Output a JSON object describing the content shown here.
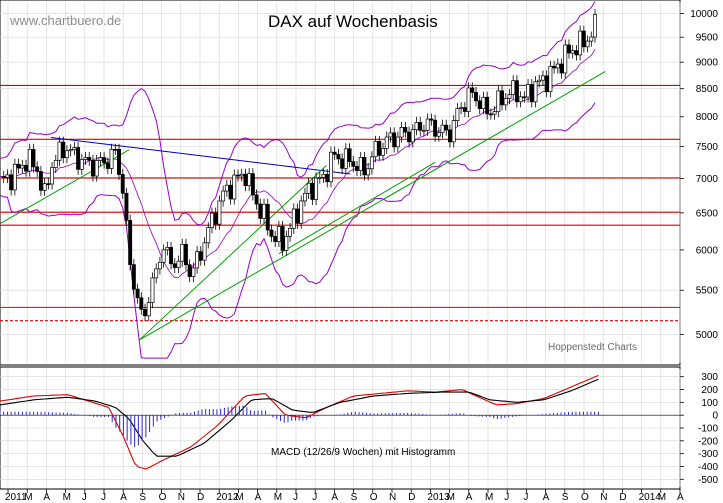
{
  "chart_data": {
    "type": "candlestick",
    "title": "DAX auf Wochenbasis",
    "watermark": "www.chartbuero.de",
    "credit": "Hoppenstedt Charts",
    "macd_label": "MACD (12/26/9 Wochen) mit Histogramm",
    "y_axis_price": {
      "ticks": [
        5000,
        5500,
        6000,
        6500,
        7000,
        7500,
        8000,
        8500,
        9000,
        9500,
        10000
      ],
      "scale": "log",
      "range": [
        4700,
        10250
      ]
    },
    "y_axis_macd": {
      "ticks": [
        300,
        200,
        100,
        0,
        -100,
        -200,
        -300,
        -400,
        -500
      ],
      "range": [
        -560,
        360
      ]
    },
    "x_labels": [
      "2011",
      "M",
      "A",
      "M",
      "J",
      "J",
      "A",
      "S",
      "O",
      "N",
      "D",
      "2012",
      "M",
      "A",
      "M",
      "J",
      "J",
      "A",
      "S",
      "O",
      "N",
      "D",
      "2013",
      "M",
      "A",
      "M",
      "J",
      "J",
      "A",
      "S",
      "O",
      "N",
      "D",
      "2014",
      "M",
      "A"
    ],
    "horizontal_levels": [
      {
        "value": 5150,
        "style": "dashed",
        "color": "#e00000"
      },
      {
        "value": 5300,
        "style": "solid",
        "color": "#e00000"
      },
      {
        "value": 6330,
        "style": "solid",
        "color": "#e00000"
      },
      {
        "value": 6510,
        "style": "solid",
        "color": "#e00000"
      },
      {
        "value": 7010,
        "style": "solid",
        "color": "#e00000"
      },
      {
        "value": 7620,
        "style": "solid",
        "color": "#e00000"
      },
      {
        "value": 8560,
        "style": "solid",
        "color": "#e00000"
      }
    ],
    "trendlines": [
      {
        "color": "#0000c0",
        "points": [
          [
            0.075,
            7650
          ],
          [
            0.515,
            7070
          ]
        ]
      },
      {
        "color": "#00a000",
        "points": [
          [
            0.0,
            6350
          ],
          [
            0.19,
            7450
          ]
        ]
      },
      {
        "color": "#00a000",
        "points": [
          [
            0.205,
            4940
          ],
          [
            0.48,
            7200
          ]
        ]
      },
      {
        "color": "#00a000",
        "points": [
          [
            0.205,
            4940
          ],
          [
            0.89,
            8820
          ]
        ]
      },
      {
        "color": "#00a000",
        "points": [
          [
            0.41,
            5950
          ],
          [
            0.64,
            7250
          ]
        ]
      }
    ],
    "price_path": [
      [
        0.0,
        6950
      ],
      [
        0.02,
        7050
      ],
      [
        0.04,
        7300
      ],
      [
        0.055,
        7150
      ],
      [
        0.065,
        6700
      ],
      [
        0.075,
        7200
      ],
      [
        0.095,
        7500
      ],
      [
        0.11,
        7350
      ],
      [
        0.125,
        7250
      ],
      [
        0.14,
        7200
      ],
      [
        0.16,
        7300
      ],
      [
        0.17,
        7400
      ],
      [
        0.18,
        6900
      ],
      [
        0.19,
        5850
      ],
      [
        0.2,
        5500
      ],
      [
        0.21,
        5100
      ],
      [
        0.22,
        5500
      ],
      [
        0.23,
        5700
      ],
      [
        0.24,
        6100
      ],
      [
        0.25,
        5800
      ],
      [
        0.27,
        5950
      ],
      [
        0.28,
        5700
      ],
      [
        0.29,
        5850
      ],
      [
        0.3,
        6100
      ],
      [
        0.31,
        6350
      ],
      [
        0.33,
        6800
      ],
      [
        0.35,
        7000
      ],
      [
        0.36,
        7100
      ],
      [
        0.37,
        6800
      ],
      [
        0.385,
        6500
      ],
      [
        0.4,
        6200
      ],
      [
        0.415,
        6100
      ],
      [
        0.43,
        6350
      ],
      [
        0.445,
        6700
      ],
      [
        0.46,
        6900
      ],
      [
        0.475,
        7000
      ],
      [
        0.49,
        7350
      ],
      [
        0.505,
        7300
      ],
      [
        0.52,
        7250
      ],
      [
        0.535,
        7100
      ],
      [
        0.55,
        7400
      ],
      [
        0.57,
        7600
      ],
      [
        0.59,
        7700
      ],
      [
        0.61,
        7750
      ],
      [
        0.625,
        7900
      ],
      [
        0.64,
        7800
      ],
      [
        0.66,
        7700
      ],
      [
        0.675,
        8100
      ],
      [
        0.69,
        8400
      ],
      [
        0.705,
        8300
      ],
      [
        0.715,
        8050
      ],
      [
        0.73,
        8200
      ],
      [
        0.745,
        8400
      ],
      [
        0.76,
        8450
      ],
      [
        0.77,
        8300
      ],
      [
        0.785,
        8550
      ],
      [
        0.8,
        8650
      ],
      [
        0.815,
        8850
      ],
      [
        0.83,
        9100
      ],
      [
        0.845,
        9300
      ],
      [
        0.86,
        9400
      ],
      [
        0.87,
        9600
      ],
      [
        0.875,
        9700
      ]
    ],
    "macd": [
      [
        0.0,
        110
      ],
      [
        0.05,
        150
      ],
      [
        0.1,
        160
      ],
      [
        0.13,
        110
      ],
      [
        0.16,
        60
      ],
      [
        0.18,
        -150
      ],
      [
        0.2,
        -400
      ],
      [
        0.215,
        -420
      ],
      [
        0.24,
        -350
      ],
      [
        0.28,
        -250
      ],
      [
        0.32,
        -80
      ],
      [
        0.36,
        150
      ],
      [
        0.39,
        170
      ],
      [
        0.42,
        0
      ],
      [
        0.45,
        -20
      ],
      [
        0.48,
        60
      ],
      [
        0.52,
        150
      ],
      [
        0.56,
        170
      ],
      [
        0.6,
        190
      ],
      [
        0.64,
        180
      ],
      [
        0.68,
        200
      ],
      [
        0.7,
        150
      ],
      [
        0.73,
        80
      ],
      [
        0.76,
        90
      ],
      [
        0.8,
        130
      ],
      [
        0.84,
        220
      ],
      [
        0.88,
        310
      ]
    ],
    "signal": [
      [
        0.0,
        80
      ],
      [
        0.05,
        120
      ],
      [
        0.1,
        140
      ],
      [
        0.14,
        110
      ],
      [
        0.17,
        60
      ],
      [
        0.19,
        -30
      ],
      [
        0.21,
        -200
      ],
      [
        0.23,
        -320
      ],
      [
        0.26,
        -320
      ],
      [
        0.3,
        -220
      ],
      [
        0.34,
        -40
      ],
      [
        0.37,
        120
      ],
      [
        0.4,
        130
      ],
      [
        0.43,
        40
      ],
      [
        0.46,
        20
      ],
      [
        0.5,
        100
      ],
      [
        0.55,
        150
      ],
      [
        0.6,
        170
      ],
      [
        0.65,
        180
      ],
      [
        0.69,
        180
      ],
      [
        0.72,
        120
      ],
      [
        0.76,
        100
      ],
      [
        0.8,
        120
      ],
      [
        0.84,
        190
      ],
      [
        0.88,
        280
      ]
    ]
  }
}
